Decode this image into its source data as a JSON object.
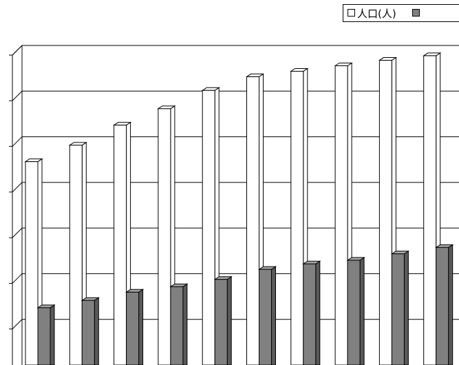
{
  "chart_data": {
    "type": "bar",
    "series": [
      {
        "name": "人口(人)",
        "values": [
          225,
          243,
          265,
          283,
          303,
          318,
          324,
          330,
          336,
          341
        ],
        "color": "#ffffff"
      },
      {
        "name": "",
        "values": [
          65,
          73,
          82,
          88,
          96,
          107,
          113,
          117,
          124,
          131
        ],
        "color": "#808080"
      }
    ],
    "ylim": [
      0,
      350
    ],
    "grid": true,
    "legend_position": "top-right",
    "three_d": true
  }
}
